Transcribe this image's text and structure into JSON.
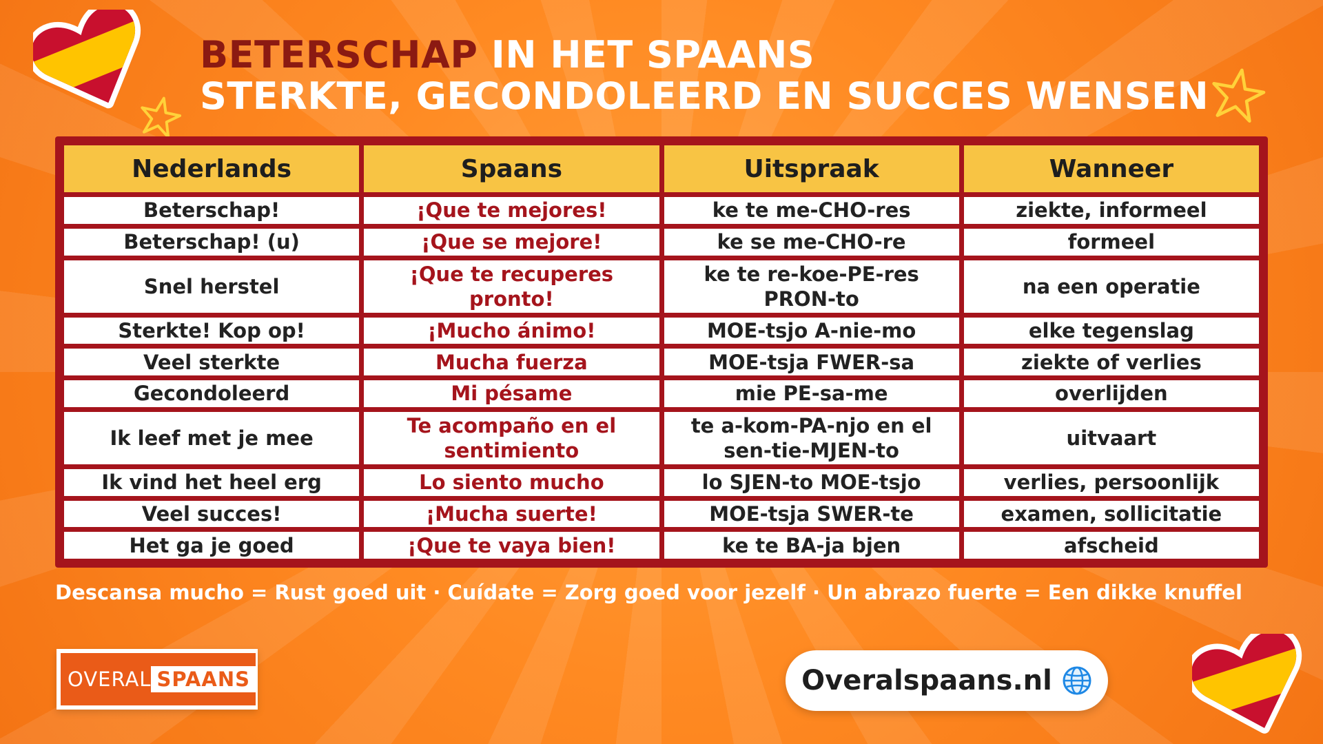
{
  "title": {
    "highlight": "BETERSCHAP",
    "rest": " IN HET SPAANS",
    "line2": "STERKTE, GECONDOLEERD EN SUCCES WENSEN"
  },
  "table": {
    "headers": [
      "Nederlands",
      "Spaans",
      "Uitspraak",
      "Wanneer"
    ],
    "rows": [
      [
        "Beterschap!",
        "¡Que te mejores!",
        "ke te me-CHO-res",
        "ziekte, informeel"
      ],
      [
        "Beterschap! (u)",
        "¡Que se mejore!",
        "ke se me-CHO-re",
        "formeel"
      ],
      [
        "Snel herstel",
        "¡Que te recuperes pronto!",
        "ke te re-koe-PE-res PRON-to",
        "na een operatie"
      ],
      [
        "Sterkte! Kop op!",
        "¡Mucho ánimo!",
        "MOE-tsjo A-nie-mo",
        "elke tegenslag"
      ],
      [
        "Veel sterkte",
        "Mucha fuerza",
        "MOE-tsja FWER-sa",
        "ziekte of verlies"
      ],
      [
        "Gecondoleerd",
        "Mi pésame",
        "mie PE-sa-me",
        "overlijden"
      ],
      [
        "Ik leef met je mee",
        "Te acompaño en el sentimiento",
        "te a-kom-PA-njo en el sen-tie-MJEN-to",
        "uitvaart"
      ],
      [
        "Ik vind het heel erg",
        "Lo siento mucho",
        "lo SJEN-to MOE-tsjo",
        "verlies, persoonlijk"
      ],
      [
        "Veel succes!",
        "¡Mucha suerte!",
        "MOE-tsja SWER-te",
        "examen, sollicitatie"
      ],
      [
        "Het ga je goed",
        "¡Que te vaya bien!",
        "ke te BA-ja bjen",
        "afscheid"
      ]
    ]
  },
  "footer_note": "Descansa mucho = Rust goed uit · Cuídate = Zorg goed voor jezelf · Un abrazo fuerte = Een dikke knuffel",
  "logo": {
    "part1": "OVERAL",
    "part2": "SPAANS"
  },
  "website": {
    "label": "Overalspaans.nl",
    "icon": "globe-icon"
  },
  "colors": {
    "background": "#ff8a22",
    "accent_red": "#a5141c",
    "header_yellow": "#f8c444",
    "title_dark": "#8b1a12"
  }
}
